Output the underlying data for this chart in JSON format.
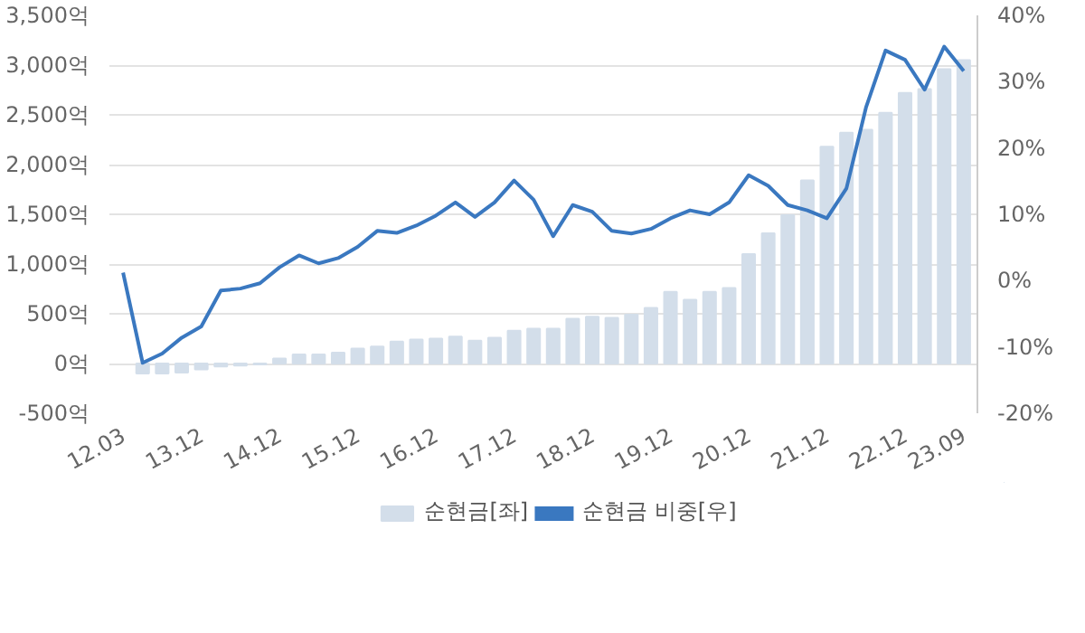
{
  "chart_data": {
    "type": "bar",
    "categories": [
      "12.03",
      null,
      null,
      null,
      "13.12",
      null,
      null,
      null,
      "14.12",
      null,
      null,
      null,
      "15.12",
      null,
      null,
      null,
      "16.12",
      null,
      null,
      null,
      "17.12",
      null,
      null,
      null,
      "18.12",
      null,
      null,
      null,
      "19.12",
      null,
      null,
      null,
      "20.12",
      null,
      null,
      null,
      "21.12",
      null,
      null,
      null,
      "22.12",
      null,
      null,
      "23.09"
    ],
    "series": [
      {
        "name": "순현금[좌]",
        "color": "#d3deea",
        "values": [
          null,
          -100,
          -100,
          -90,
          -60,
          -30,
          -20,
          -10,
          50,
          90,
          90,
          110,
          150,
          170,
          220,
          240,
          250,
          270,
          230,
          260,
          330,
          350,
          350,
          450,
          470,
          460,
          490,
          560,
          720,
          640,
          720,
          760,
          1100,
          1310,
          1490,
          1840,
          2180,
          2320,
          2350,
          2520,
          2720,
          2760,
          2960,
          3050
        ]
      },
      {
        "name": "순현금 비중[우]",
        "type": "line",
        "axis": "y2",
        "color": "#3a78c0",
        "values": [
          1.2,
          -12.4,
          -11.0,
          -8.6,
          -6.9,
          -1.5,
          -1.2,
          -0.4,
          2.0,
          3.8,
          2.6,
          3.4,
          5.1,
          7.5,
          7.2,
          8.3,
          9.8,
          11.8,
          9.6,
          11.8,
          15.1,
          12.2,
          6.7,
          11.4,
          10.4,
          7.5,
          7.1,
          7.8,
          9.4,
          10.6,
          10.0,
          11.8,
          15.9,
          14.3,
          11.4,
          10.6,
          9.4,
          13.9,
          26.1,
          34.7,
          33.3,
          28.8,
          35.3,
          31.6
        ]
      }
    ],
    "ylim": [
      -500,
      3500
    ],
    "yticks": [
      {
        "value": -500,
        "label": "-500억"
      },
      {
        "value": 0,
        "label": "0억"
      },
      {
        "value": 500,
        "label": "500억"
      },
      {
        "value": 1000,
        "label": "1,000억"
      },
      {
        "value": 1500,
        "label": "1,500억"
      },
      {
        "value": 2000,
        "label": "2,000억"
      },
      {
        "value": 2500,
        "label": "2,500억"
      },
      {
        "value": 3000,
        "label": "3,000억"
      },
      {
        "value": 3500,
        "label": "3,500억"
      }
    ],
    "y2lim": [
      -20,
      40
    ],
    "y2ticks": [
      {
        "value": -20,
        "label": "-20%"
      },
      {
        "value": -10,
        "label": "-10%"
      },
      {
        "value": 0,
        "label": "0%"
      },
      {
        "value": 10,
        "label": "10%"
      },
      {
        "value": 20,
        "label": "20%"
      },
      {
        "value": 30,
        "label": "30%"
      },
      {
        "value": 40,
        "label": "40%"
      }
    ],
    "grid": "y",
    "legend": "bottom",
    "marker": "none",
    "line_style": "solid"
  }
}
